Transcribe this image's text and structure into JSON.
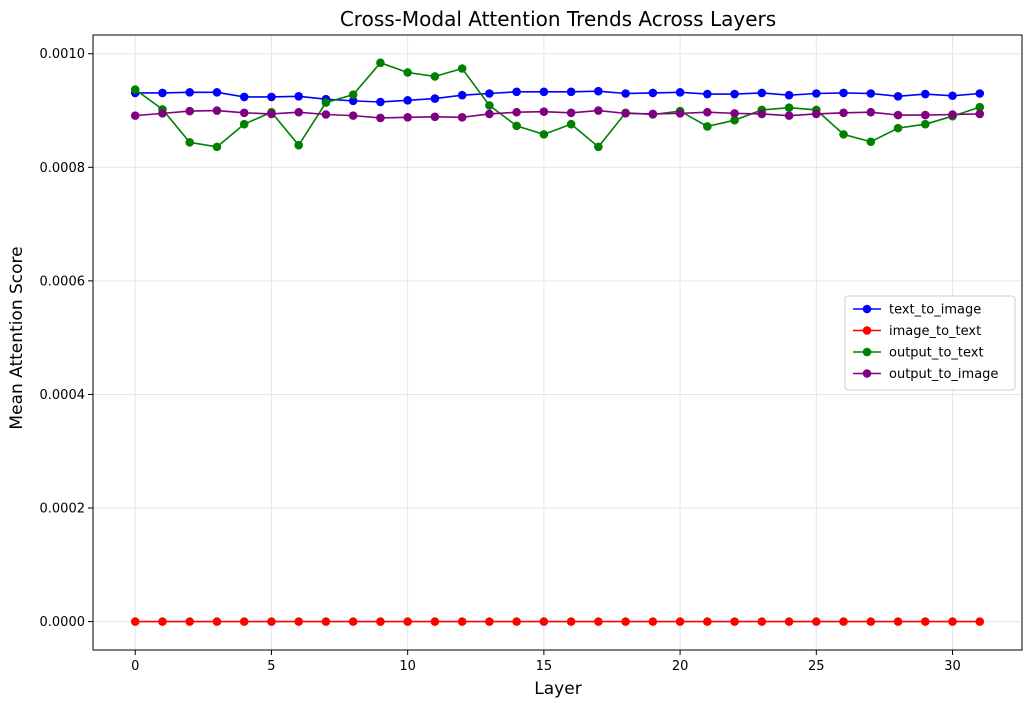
{
  "chart_data": {
    "type": "line",
    "title": "Cross-Modal Attention Trends Across Layers",
    "xlabel": "Layer",
    "ylabel": "Mean Attention Score",
    "xlim": [
      -1.55,
      32.55
    ],
    "ylim": [
      -5e-05,
      0.001033
    ],
    "xticks": [
      0,
      5,
      10,
      15,
      20,
      25,
      30
    ],
    "yticks": [
      0.0,
      0.0002,
      0.0004,
      0.0006,
      0.0008,
      0.001
    ],
    "ytick_labels": [
      "0.0000",
      "0.0002",
      "0.0004",
      "0.0006",
      "0.0008",
      "0.0010"
    ],
    "grid": true,
    "legend_position": "center-right",
    "x": [
      0,
      1,
      2,
      3,
      4,
      5,
      6,
      7,
      8,
      9,
      10,
      11,
      12,
      13,
      14,
      15,
      16,
      17,
      18,
      19,
      20,
      21,
      22,
      23,
      24,
      25,
      26,
      27,
      28,
      29,
      30,
      31
    ],
    "series": [
      {
        "name": "text_to_image",
        "color": "#0000ff",
        "values": [
          0.000931,
          0.000931,
          0.000932,
          0.000932,
          0.000924,
          0.000924,
          0.000925,
          0.00092,
          0.000917,
          0.000915,
          0.000918,
          0.000921,
          0.000927,
          0.00093,
          0.000933,
          0.000933,
          0.000933,
          0.000934,
          0.00093,
          0.000931,
          0.000932,
          0.000929,
          0.000929,
          0.000931,
          0.000927,
          0.00093,
          0.000931,
          0.00093,
          0.000925,
          0.000929,
          0.000926,
          0.00093
        ]
      },
      {
        "name": "image_to_text",
        "color": "#ff0000",
        "values": [
          0,
          0,
          0,
          0,
          0,
          0,
          0,
          0,
          0,
          0,
          0,
          0,
          0,
          0,
          0,
          0,
          0,
          0,
          0,
          0,
          0,
          0,
          0,
          0,
          0,
          0,
          0,
          0,
          0,
          0,
          0,
          0
        ]
      },
      {
        "name": "output_to_text",
        "color": "#008000",
        "values": [
          0.000937,
          0.000902,
          0.000844,
          0.000836,
          0.000876,
          0.000897,
          0.000839,
          0.000914,
          0.000928,
          0.000984,
          0.000967,
          0.00096,
          0.000974,
          0.000909,
          0.000873,
          0.000858,
          0.000876,
          0.000836,
          0.000896,
          0.000893,
          0.000899,
          0.000872,
          0.000883,
          0.000901,
          0.000905,
          0.000901,
          0.000858,
          0.000845,
          0.000869,
          0.000876,
          0.00089,
          0.000906
        ]
      },
      {
        "name": "output_to_image",
        "color": "#800080",
        "values": [
          0.000891,
          0.000895,
          0.000899,
          0.0009,
          0.000896,
          0.000894,
          0.000897,
          0.000893,
          0.000891,
          0.000887,
          0.000888,
          0.000889,
          0.000888,
          0.000894,
          0.000897,
          0.000898,
          0.000896,
          0.0009,
          0.000895,
          0.000894,
          0.000895,
          0.000897,
          0.000895,
          0.000894,
          0.000891,
          0.000894,
          0.000896,
          0.000897,
          0.000892,
          0.000892,
          0.000893,
          0.000894
        ]
      }
    ]
  }
}
